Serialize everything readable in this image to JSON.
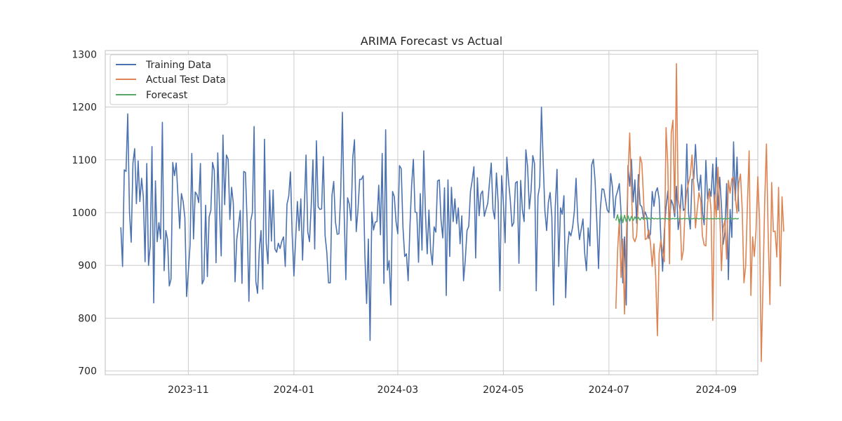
{
  "chart_data": {
    "type": "line",
    "title": "ARIMA Forecast vs Actual",
    "xlabel": "",
    "ylabel": "",
    "xlim": [
      "2023-09-14",
      "2024-09-25"
    ],
    "ylim": [
      693,
      1307
    ],
    "x_ticks": [
      "2023-11",
      "2024-01",
      "2024-03",
      "2024-05",
      "2024-07",
      "2024-09"
    ],
    "y_ticks": [
      700,
      800,
      900,
      1000,
      1100,
      1200,
      1300
    ],
    "grid": true,
    "legend_position": "top-left",
    "series": [
      {
        "name": "Training Data",
        "color": "#4c72b0",
        "start_date": "2023-09-23",
        "values": [
          972,
          898,
          1081,
          1078,
          1187,
          1001,
          944,
          1094,
          1121,
          1017,
          1098,
          1021,
          1065,
          1030,
          907,
          1093,
          900,
          938,
          1125,
          829,
          1060,
          945,
          981,
          950,
          1171,
          890,
          966,
          949,
          861,
          874,
          1095,
          1070,
          1094,
          1031,
          970,
          1036,
          1021,
          990,
          841,
          889,
          939,
          1112,
          950,
          1039,
          1034,
          1019,
          1093,
          865,
          873,
          1014,
          879,
          992,
          1004,
          1095,
          1080,
          905,
          1113,
          1008,
          918,
          1147,
          1015,
          1109,
          1101,
          987,
          1048,
          1017,
          869,
          950,
          976,
          1004,
          866,
          1078,
          1076,
          979,
          832,
          984,
          1000,
          1163,
          870,
          847,
          930,
          966,
          855,
          1139,
          942,
          903,
          1042,
          946,
          1043,
          931,
          925,
          942,
          932,
          946,
          954,
          898,
          1016,
          1031,
          1077,
          958,
          880,
          949,
          1021,
          966,
          1026,
          910,
          1008,
          1109,
          964,
          945,
          1013,
          1100,
          931,
          1136,
          1011,
          1006,
          1007,
          1106,
          957,
          925,
          867,
          867,
          1033,
          1059,
          982,
          959,
          960,
          1032,
          1190,
          1004,
          873,
          1028,
          1016,
          985,
          1104,
          1138,
          964,
          1005,
          1063,
          1063,
          1070,
          919,
          828,
          950,
          758,
          1001,
          967,
          982,
          983,
          1052,
          958,
          1112,
          866,
          1157,
          891,
          909,
          825,
          1040,
          1030,
          983,
          960,
          1089,
          1083,
          972,
          917,
          922,
          871,
          970,
          1051,
          1101,
          1001,
          1000,
          906,
          1036,
          929,
          1117,
          998,
          922,
          1005,
          928,
          901,
          973,
          963,
          1060,
          1062,
          986,
          952,
          1047,
          843,
          1062,
          917,
          1048,
          983,
          1026,
          979,
          1009,
          941,
          994,
          871,
          910,
          966,
          974,
          1040,
          1061,
          1087,
          914,
          1066,
          994,
          1035,
          1041,
          993,
          1006,
          1018,
          1057,
          1094,
          1006,
          988,
          1075,
          1019,
          852,
          1070,
          1020,
          943,
          1105,
          1060,
          1024,
          974,
          981,
          1056,
          1059,
          904,
          1061,
          1005,
          983,
          1119,
          1087,
          1007,
          1041,
          1108,
          1093,
          852,
          1031,
          1051,
          1200,
          1097,
          1003,
          966,
          1019,
          1038,
          993,
          825,
          1011,
          1082,
          898,
          1009,
          997,
          1032,
          839,
          929,
          964,
          956,
          972,
          1002,
          1065,
          982,
          949,
          969,
          988,
          923,
          890,
          971,
          937,
          1090,
          1101,
          1060,
          982,
          894,
          1006,
          1045,
          1044,
          1025,
          1005,
          1000,
          1074,
          1049,
          990,
          1030,
          1041,
          1055,
          1000,
          867,
          954,
          825,
          1089,
          1050,
          1101,
          1020,
          1062,
          980,
          1072,
          1015,
          1011,
          990,
          1001,
          991,
          951,
          960,
          1040,
          1012,
          1039,
          1047,
          1026,
          953,
          889,
          965,
          1010,
          1041,
          985,
          1024,
          1015,
          992,
          1050,
          968,
          991,
          1053,
          1004,
          1008,
          1130,
          999,
          969,
          1063,
          1064,
          1129,
          1065,
          1042,
          1071,
          1002,
          977,
          1099,
          1026,
          1045,
          1031,
          1092,
          1007,
          1104,
          1005,
          1067,
          1013,
          940,
          963,
          1055,
          873,
          1006,
          953,
          1134,
          1023,
          1105,
          1002
        ]
      },
      {
        "name": "Actual Test Data",
        "color": "#dd8452",
        "start_date": "2024-07-05",
        "values": [
          818,
          928,
          987,
          877,
          950,
          808,
          943,
          1068,
          1151,
          1040,
          952,
          945,
          956,
          1024,
          1106,
          1094,
          1027,
          949,
          951,
          967,
          942,
          898,
          941,
          880,
          767,
          922,
          948,
          928,
          907,
          1161,
          1091,
          903,
          1151,
          1175,
          999,
          1282,
          1023,
          1006,
          910,
          929,
          1005,
          1041,
          1056,
          1071,
          1109,
          1051,
          971,
          1006,
          1038,
          1024,
          956,
          939,
          937,
          1018,
          1042,
          1004,
          796,
          1034,
          991,
          1086,
          1002,
          890,
          971,
          986,
          912,
          1061,
          1037,
          1064,
          1067,
          1028,
          999,
          1056,
          1073,
          1006,
          867,
          899,
          1015,
          1117,
          843,
          954,
          917,
          968,
          1068,
          987,
          718,
          862,
          1022,
          1130,
          957,
          826,
          1057,
          964,
          965,
          916,
          1048,
          861,
          1030,
          964
        ]
      },
      {
        "name": "Forecast",
        "color": "#55a868",
        "start_date": "2024-07-05",
        "values": [
          985,
          996,
          979,
          997,
          981,
          995,
          983,
          994,
          984,
          993,
          985,
          992,
          986,
          991,
          986,
          991,
          987,
          990,
          987,
          990,
          987,
          990,
          988,
          989,
          988,
          989,
          988,
          989,
          988,
          989,
          988,
          989,
          988,
          989,
          988,
          989,
          988,
          989,
          988,
          989,
          988,
          989,
          988,
          989,
          988,
          989,
          988,
          989,
          988,
          989,
          988,
          989,
          988,
          989,
          988,
          989,
          988,
          989,
          988,
          989,
          988,
          989,
          988,
          989,
          988,
          989,
          988,
          989,
          988,
          989,
          988,
          989
        ]
      }
    ]
  }
}
